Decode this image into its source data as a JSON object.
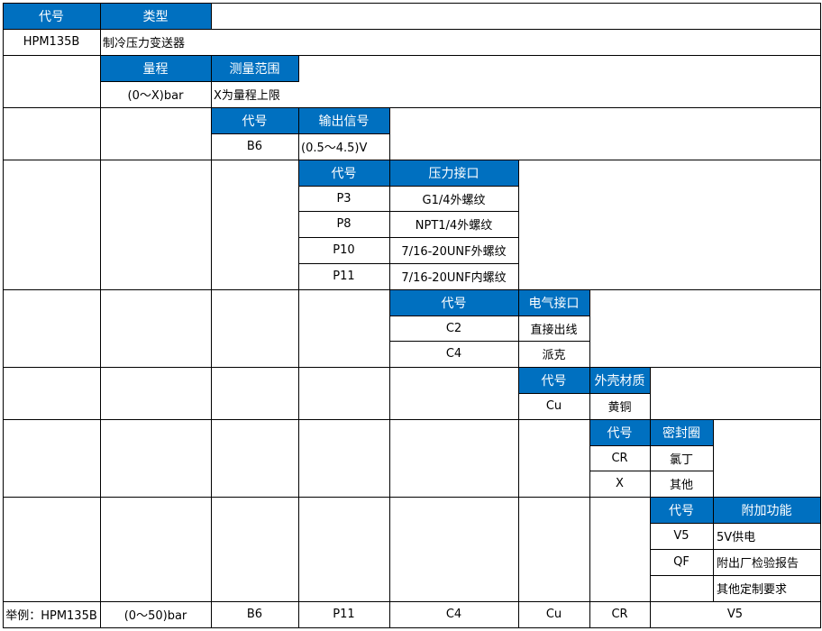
{
  "colors": {
    "header_bg": "#0070c0",
    "header_fg": "#ffffff",
    "border": "#000000"
  },
  "col1": {
    "code_header": "代号",
    "type_header": "类型",
    "code": "HPM135B",
    "type": "制冷压力变送器"
  },
  "range": {
    "header": "量程",
    "header2": "测量范围",
    "value": "(0～X)bar",
    "desc": "X为量程上限"
  },
  "output": {
    "code_header": "代号",
    "header": "输出信号",
    "code": "B6",
    "value": "(0.5～4.5)V"
  },
  "pressure": {
    "code_header": "代号",
    "header": "压力接口",
    "rows": [
      {
        "code": "P3",
        "desc": "G1/4外螺纹"
      },
      {
        "code": "P8",
        "desc": "NPT1/4外螺纹"
      },
      {
        "code": "P10",
        "desc": "7/16-20UNF外螺纹"
      },
      {
        "code": "P11",
        "desc": "7/16-20UNF内螺纹"
      }
    ]
  },
  "electrical": {
    "code_header": "代号",
    "header": "电气接口",
    "rows": [
      {
        "code": "C2",
        "desc": "直接出线"
      },
      {
        "code": "C4",
        "desc": "派克"
      }
    ]
  },
  "housing": {
    "code_header": "代号",
    "header": "外壳材质",
    "rows": [
      {
        "code": "Cu",
        "desc": "黄铜"
      }
    ]
  },
  "seal": {
    "code_header": "代号",
    "header": "密封圈",
    "rows": [
      {
        "code": "CR",
        "desc": "氯丁"
      },
      {
        "code": "X",
        "desc": "其他"
      }
    ]
  },
  "extra": {
    "code_header": "代号",
    "header": "附加功能",
    "rows": [
      {
        "code": "V5",
        "desc": "5V供电"
      },
      {
        "code": "QF",
        "desc": "附出厂检验报告"
      },
      {
        "code": "",
        "desc": "其他定制要求"
      }
    ]
  },
  "example": {
    "label": "举例：HPM135B",
    "values": [
      "(0～50)bar",
      "B6",
      "P11",
      "C4",
      "Cu",
      "CR",
      "V5"
    ]
  }
}
